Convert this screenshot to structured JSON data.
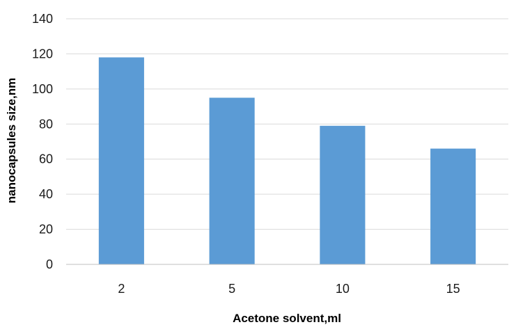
{
  "chart_data": {
    "type": "bar",
    "title": "",
    "xlabel": "Acetone solvent,ml",
    "ylabel": "nanocapsules size,nm",
    "categories": [
      "2",
      "5",
      "10",
      "15"
    ],
    "values": [
      118,
      95,
      79,
      66
    ],
    "ylim": [
      0,
      140
    ],
    "yticks": [
      "0",
      "20",
      "40",
      "60",
      "80",
      "100",
      "120",
      "140"
    ],
    "grid": "horizontal",
    "legend": "none",
    "bar_color": "#5b9bd5",
    "grid_color": "#d9d9d9"
  }
}
